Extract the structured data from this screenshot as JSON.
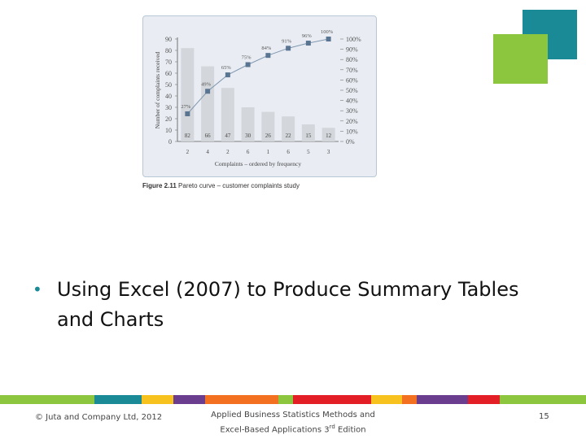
{
  "slide": {
    "bullet": "Using Excel (2007) to Produce Summary Tables and Charts",
    "accent_color": "#1a8a96",
    "decor_colors": [
      "#1a8a96",
      "#8cc63f"
    ]
  },
  "figure": {
    "caption_label": "Figure 2.11",
    "caption_text": "Pareto curve – customer complaints study"
  },
  "chart_data": {
    "type": "bar",
    "categories": [
      "2",
      "4",
      "2",
      "6",
      "1",
      "6",
      "5",
      "3"
    ],
    "series": [
      {
        "type": "bar",
        "values": [
          82,
          66,
          47,
          30,
          26,
          22,
          15,
          12
        ],
        "value_labels": [
          "82",
          "66",
          "47",
          "30",
          "26",
          "22",
          "15",
          "12"
        ]
      },
      {
        "type": "line",
        "values": [
          27,
          49,
          65,
          75,
          84,
          91,
          96,
          100
        ],
        "value_labels": [
          "27%",
          "49%",
          "65%",
          "75%",
          "84%",
          "91%",
          "96%",
          "100%"
        ]
      }
    ],
    "xlabel": "Complaints – ordered by frequency",
    "ylabel": "Number of complaints received",
    "ylim": [
      0,
      90
    ],
    "y_ticks": [
      "0",
      "10",
      "20",
      "30",
      "40",
      "50",
      "60",
      "70",
      "80",
      "90"
    ],
    "y2lim": [
      0,
      100
    ],
    "y2_ticks": [
      "0%",
      "10%",
      "20%",
      "30%",
      "40%",
      "50%",
      "60%",
      "70%",
      "80%",
      "90%",
      "100%"
    ],
    "colors": {
      "bars": "#d3d6da",
      "line": "#7f97b0",
      "markers": "#5a7591"
    }
  },
  "footer": {
    "copyright": "© Juta and Company Ltd, 2012",
    "title_line1": "Applied Business Statistics Methods and",
    "title_line2_prefix": "Excel-Based Applications 3",
    "title_line2_sup": "rd",
    "title_line2_suffix": " Edition",
    "page_number": "15",
    "bar_colors": [
      "#8cc63f",
      "#1a8a96",
      "#f7c21e",
      "#6a3d8f",
      "#f37021",
      "#8cc63f",
      "#e31e24",
      "#f7c21e",
      "#f37021",
      "#6a3d8f",
      "#e31e24",
      "#8cc63f"
    ]
  }
}
